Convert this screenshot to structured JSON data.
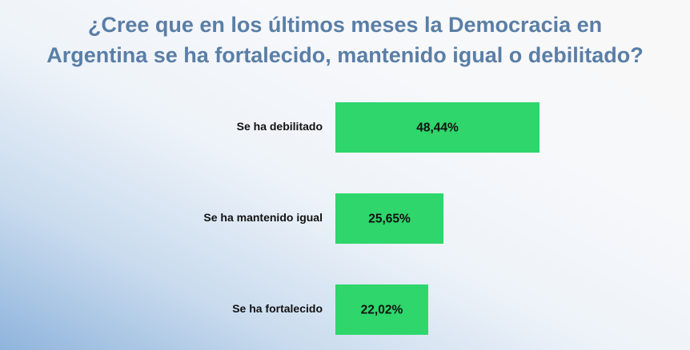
{
  "title_line1": "¿Cree que en los últimos meses la Democracia en",
  "title_line2": "Argentina se ha fortalecido, mantenido igual o debilitado?",
  "colors": {
    "bar": "#2ed66b",
    "title": "#5a7ea6",
    "text": "#111111"
  },
  "chart_data": {
    "type": "bar",
    "orientation": "horizontal",
    "categories": [
      "Se ha debilitado",
      "Se ha mantenido igual",
      "Se ha fortalecido"
    ],
    "values": [
      48.44,
      25.65,
      22.02
    ],
    "value_labels": [
      "48,44%",
      "25,65%",
      "22,02%"
    ],
    "title": "¿Cree que en los últimos meses la Democracia en Argentina se ha fortalecido, mantenido igual o debilitado?",
    "xlabel": "",
    "ylabel": "",
    "xlim": [
      0,
      100
    ],
    "grid": false,
    "legend": "none"
  }
}
